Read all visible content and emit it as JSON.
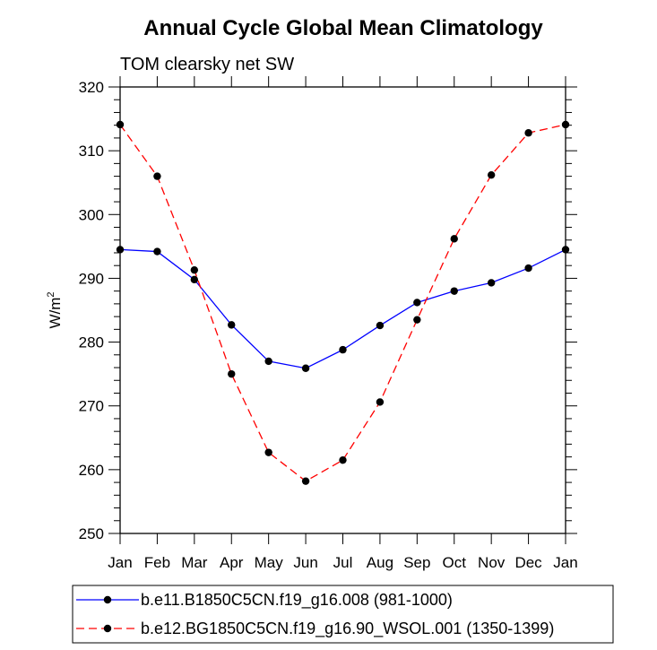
{
  "chart_data": {
    "type": "line",
    "title": "Annual Cycle Global Mean Climatology",
    "subtitle": "TOM clearsky net SW",
    "ylabel_base": "W/m",
    "ylabel_sup": "2",
    "ylim": [
      250,
      320
    ],
    "yticks": [
      "320",
      "310",
      "300",
      "290",
      "280",
      "270",
      "260",
      "250"
    ],
    "categories": [
      "Jan",
      "Feb",
      "Mar",
      "Apr",
      "May",
      "Jun",
      "Jul",
      "Aug",
      "Sep",
      "Oct",
      "Nov",
      "Dec",
      "Jan"
    ],
    "series": [
      {
        "name": "b.e11.B1850C5CN.f19_g16.008 (981-1000)",
        "color": "#0000ff",
        "dash": "solid",
        "values": [
          294.5,
          294.2,
          289.8,
          282.7,
          277.0,
          275.9,
          278.8,
          282.6,
          286.2,
          288.0,
          289.3,
          291.6,
          294.5
        ]
      },
      {
        "name": "b.e12.BG1850C5CN.f19_g16.90_WSOL.001 (1350-1399)",
        "color": "#ff0000",
        "dash": "dashed",
        "values": [
          314.1,
          306.0,
          291.3,
          275.0,
          262.7,
          258.2,
          261.5,
          270.6,
          283.5,
          296.2,
          306.2,
          312.8,
          314.1
        ]
      }
    ],
    "legend_position": "bottom"
  }
}
